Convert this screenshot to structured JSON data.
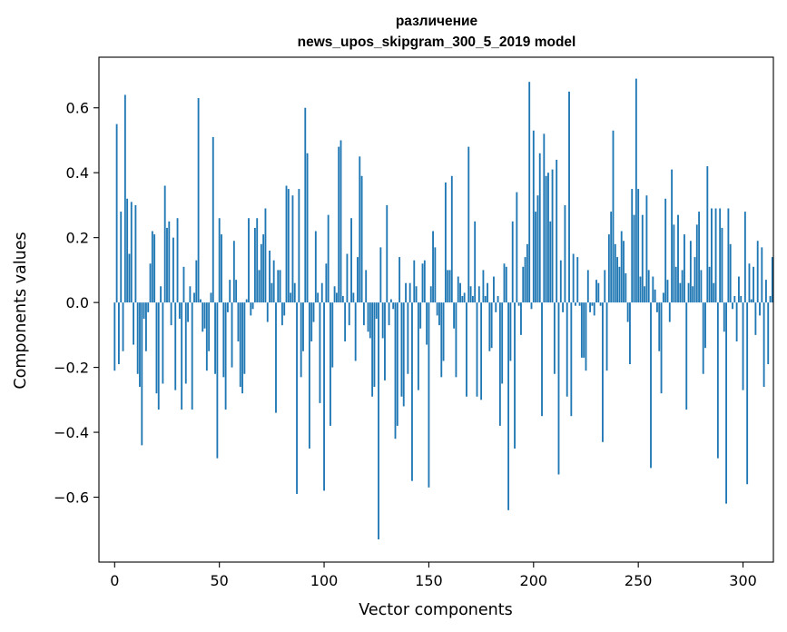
{
  "chart_data": {
    "type": "bar",
    "title": "различение",
    "subtitle": "news_upos_skipgram_300_5_2019 model",
    "xlabel": "Vector components",
    "ylabel": "Components values",
    "xlim": [
      -7.5,
      314.5
    ],
    "ylim": [
      -0.8,
      0.756
    ],
    "xticks": [
      0,
      50,
      100,
      150,
      200,
      250,
      300
    ],
    "xtick_labels": [
      "0",
      "50",
      "100",
      "150",
      "200",
      "250",
      "300"
    ],
    "yticks": [
      -0.6,
      -0.4,
      -0.2,
      0.0,
      0.2,
      0.4,
      0.6
    ],
    "ytick_labels": [
      "−0.6",
      "−0.4",
      "−0.2",
      "0.0",
      "0.2",
      "0.4",
      "0.6"
    ],
    "grid": false,
    "bar_color": "#1f77b4",
    "x_start": 0,
    "values": [
      -0.21,
      0.55,
      -0.19,
      0.28,
      -0.15,
      0.64,
      0.32,
      0.15,
      0.31,
      -0.13,
      0.3,
      -0.22,
      -0.26,
      -0.44,
      -0.05,
      -0.15,
      -0.03,
      0.12,
      0.22,
      0.21,
      -0.28,
      -0.33,
      0.05,
      -0.25,
      0.36,
      0.23,
      0.25,
      -0.07,
      0.2,
      -0.27,
      0.26,
      -0.05,
      -0.33,
      0.11,
      -0.25,
      -0.06,
      0.05,
      -0.33,
      0.03,
      0.13,
      0.63,
      0.01,
      -0.09,
      -0.08,
      -0.21,
      -0.15,
      0.03,
      0.51,
      -0.22,
      -0.48,
      0.26,
      0.21,
      -0.23,
      -0.33,
      -0.03,
      0.07,
      -0.2,
      0.19,
      0.07,
      -0.12,
      -0.26,
      -0.28,
      -0.22,
      0.01,
      0.26,
      -0.04,
      -0.02,
      0.23,
      0.26,
      0.1,
      0.18,
      0.21,
      0.29,
      -0.06,
      0.16,
      0.06,
      0.13,
      -0.34,
      0.1,
      0.1,
      -0.07,
      -0.04,
      0.36,
      0.35,
      0.03,
      0.33,
      0.06,
      -0.59,
      0.35,
      -0.23,
      -0.15,
      0.6,
      0.46,
      -0.45,
      -0.12,
      -0.06,
      0.22,
      0.03,
      -0.31,
      0.06,
      -0.58,
      0.12,
      0.27,
      -0.38,
      -0.2,
      0.05,
      0.03,
      0.48,
      0.5,
      0.02,
      -0.12,
      0.15,
      -0.07,
      0.26,
      0.03,
      -0.18,
      0.14,
      0.45,
      0.39,
      -0.07,
      0.1,
      -0.09,
      -0.11,
      -0.29,
      -0.26,
      -0.05,
      -0.73,
      0.17,
      -0.11,
      -0.24,
      0.3,
      -0.07,
      0.01,
      -0.02,
      -0.42,
      -0.38,
      0.14,
      -0.29,
      -0.32,
      0.06,
      -0.22,
      0.06,
      -0.55,
      0.13,
      0.05,
      -0.27,
      -0.08,
      0.12,
      0.13,
      -0.13,
      -0.57,
      0.05,
      0.22,
      0.17,
      -0.04,
      -0.07,
      -0.23,
      -0.18,
      0.37,
      0.1,
      0.1,
      0.39,
      -0.08,
      -0.23,
      0.08,
      0.06,
      0.02,
      0.03,
      -0.29,
      0.48,
      0.05,
      0.02,
      0.25,
      -0.29,
      0.05,
      -0.3,
      0.1,
      0.02,
      0.06,
      -0.15,
      -0.14,
      0.08,
      -0.03,
      0.02,
      -0.38,
      -0.25,
      0.12,
      0.11,
      -0.64,
      -0.18,
      0.25,
      -0.45,
      0.34,
      -0.01,
      -0.1,
      0.11,
      0.14,
      0.18,
      0.68,
      -0.02,
      0.53,
      0.28,
      0.33,
      0.46,
      -0.35,
      0.52,
      0.39,
      0.4,
      0.25,
      0.41,
      -0.22,
      0.44,
      -0.53,
      0.13,
      -0.03,
      0.3,
      -0.29,
      0.65,
      -0.35,
      0.15,
      -0.01,
      0.14,
      -0.01,
      -0.17,
      -0.17,
      -0.21,
      0.1,
      -0.03,
      -0.01,
      -0.04,
      0.07,
      0.06,
      -0.01,
      -0.43,
      0.1,
      -0.21,
      0.21,
      0.28,
      0.53,
      0.18,
      0.14,
      0.11,
      0.22,
      0.19,
      0.09,
      -0.06,
      -0.19,
      0.35,
      0.27,
      0.69,
      0.35,
      0.08,
      0.27,
      0.05,
      0.33,
      0.1,
      -0.51,
      0.08,
      0.04,
      -0.03,
      -0.15,
      -0.28,
      0.03,
      0.32,
      0.07,
      -0.06,
      0.41,
      0.24,
      0.11,
      0.27,
      0.06,
      0.1,
      0.21,
      -0.33,
      0.06,
      0.19,
      0.05,
      0.14,
      0.24,
      0.28,
      0.1,
      -0.22,
      -0.14,
      0.42,
      0.11,
      0.29,
      0.06,
      0.29,
      -0.48,
      0.29,
      0.23,
      -0.09,
      -0.62,
      0.29,
      0.18,
      -0.02,
      0.02,
      -0.12,
      0.08,
      0.02,
      -0.27,
      0.28,
      -0.56,
      0.12,
      0.01,
      0.11,
      -0.1,
      0.19,
      -0.04,
      0.17,
      -0.26,
      0.07,
      -0.19,
      0.02,
      0.14
    ]
  }
}
